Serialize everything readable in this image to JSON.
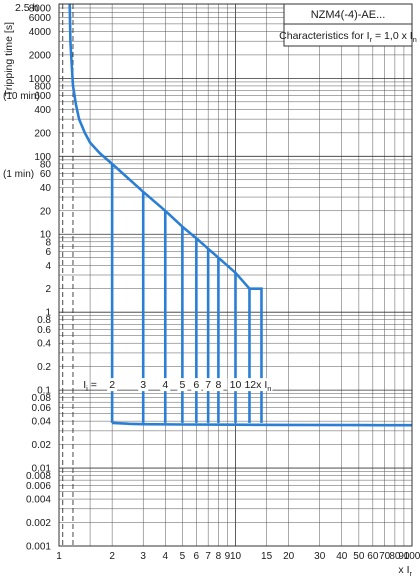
{
  "chart_data": {
    "type": "line",
    "title": "NZM4(-4)-AE...",
    "subtitle": "Characteristics for I",
    "subtitle_sub": "r",
    "subtitle_tail": " = 1,0 x I",
    "subtitle_tail_sub": "n",
    "ylabel": "Tripping time [s]",
    "ylabel_top": "2.5 h",
    "xlabel": "x I",
    "xlabel_sub": "r",
    "x_scale": "log",
    "y_scale": "log",
    "xlim": [
      1,
      100
    ],
    "ylim": [
      0.001,
      9000
    ],
    "grid": true,
    "x_ticks": [
      {
        "v": 1,
        "label": "1"
      },
      {
        "v": 2,
        "label": "2"
      },
      {
        "v": 3,
        "label": "3"
      },
      {
        "v": 4,
        "label": "4"
      },
      {
        "v": 5,
        "label": "5"
      },
      {
        "v": 6,
        "label": "6"
      },
      {
        "v": 7,
        "label": "7"
      },
      {
        "v": 8,
        "label": "8"
      },
      {
        "v": 9,
        "label": "9"
      },
      {
        "v": 10,
        "label": "10"
      },
      {
        "v": 15,
        "label": "15"
      },
      {
        "v": 20,
        "label": "20"
      },
      {
        "v": 30,
        "label": "30"
      },
      {
        "v": 40,
        "label": "40"
      },
      {
        "v": 50,
        "label": "50"
      },
      {
        "v": 60,
        "label": "60"
      },
      {
        "v": 70,
        "label": "70"
      },
      {
        "v": 80,
        "label": "80"
      },
      {
        "v": 90,
        "label": "90"
      },
      {
        "v": 100,
        "label": "100"
      }
    ],
    "y_ticks": [
      {
        "v": 8000,
        "label": "8000"
      },
      {
        "v": 6000,
        "label": "6000"
      },
      {
        "v": 4000,
        "label": "4000"
      },
      {
        "v": 2000,
        "label": "2000"
      },
      {
        "v": 1000,
        "label": "1000"
      },
      {
        "v": 800,
        "label": "800"
      },
      {
        "v": 600,
        "label": "600"
      },
      {
        "v": 400,
        "label": "400"
      },
      {
        "v": 200,
        "label": "200"
      },
      {
        "v": 100,
        "label": "100"
      },
      {
        "v": 80,
        "label": "80"
      },
      {
        "v": 60,
        "label": "60"
      },
      {
        "v": 40,
        "label": "40"
      },
      {
        "v": 20,
        "label": "20"
      },
      {
        "v": 10,
        "label": "10"
      },
      {
        "v": 8,
        "label": "8"
      },
      {
        "v": 6,
        "label": "6"
      },
      {
        "v": 4,
        "label": "4"
      },
      {
        "v": 2,
        "label": "2"
      },
      {
        "v": 1,
        "label": "1"
      },
      {
        "v": 0.8,
        "label": "0.8"
      },
      {
        "v": 0.6,
        "label": "0.6"
      },
      {
        "v": 0.4,
        "label": "0.4"
      },
      {
        "v": 0.2,
        "label": "0.2"
      },
      {
        "v": 0.1,
        "label": "0.1"
      },
      {
        "v": 0.08,
        "label": "0.08"
      },
      {
        "v": 0.06,
        "label": "0.06"
      },
      {
        "v": 0.04,
        "label": "0.04"
      },
      {
        "v": 0.02,
        "label": "0.02"
      },
      {
        "v": 0.01,
        "label": "0.01"
      },
      {
        "v": 0.008,
        "label": "0.008"
      },
      {
        "v": 0.006,
        "label": "0.006"
      },
      {
        "v": 0.004,
        "label": "0.004"
      },
      {
        "v": 0.002,
        "label": "0.002"
      },
      {
        "v": 0.001,
        "label": "0.001"
      }
    ],
    "y_annotations": [
      {
        "v": 600,
        "label": "(10 min)"
      },
      {
        "v": 60,
        "label": "(1 min)"
      }
    ],
    "tolerance_lines": [
      {
        "x": 1.05,
        "style": "dashed"
      },
      {
        "x": 1.2,
        "style": "dashed"
      }
    ],
    "overload_curve": {
      "x": [
        1.15,
        1.16,
        1.18,
        1.2,
        1.25,
        1.3,
        1.4,
        1.5,
        1.7,
        2.0,
        3.0,
        4.0,
        5.0,
        6.0,
        7.0,
        8.0,
        10.0,
        12.0
      ],
      "y": [
        9000,
        3000,
        1500,
        800,
        450,
        300,
        200,
        150,
        110,
        80,
        35,
        20,
        12.5,
        8.9,
        6.5,
        5.0,
        3.2,
        2.0
      ]
    },
    "instantaneous_settings": {
      "label_prefix": "I",
      "label_prefix_sub": "i",
      "label_eq": " =",
      "trip_time": 0.038,
      "values": [
        {
          "x": 2,
          "label": "2",
          "y_top": 80
        },
        {
          "x": 3,
          "label": "3",
          "y_top": 35
        },
        {
          "x": 4,
          "label": "4",
          "y_top": 20
        },
        {
          "x": 5,
          "label": "5",
          "y_top": 12.5
        },
        {
          "x": 6,
          "label": "6",
          "y_top": 8.9
        },
        {
          "x": 7,
          "label": "7",
          "y_top": 6.5
        },
        {
          "x": 8,
          "label": "8",
          "y_top": 5.0
        },
        {
          "x": 10,
          "label": "10",
          "y_top": 3.2
        },
        {
          "x": 12,
          "label": "12",
          "y_top": 2.0
        }
      ],
      "last_suffix": "x I",
      "last_suffix_sub": "n"
    },
    "short_circuit_tail": {
      "x": [
        2,
        2.5,
        3,
        5,
        10,
        20,
        50,
        100
      ],
      "y": [
        0.038,
        0.037,
        0.0365,
        0.0362,
        0.036,
        0.0358,
        0.0356,
        0.0355
      ]
    },
    "curve_color": "#2a7fd4",
    "curve_color_light": "#5aa7ee"
  }
}
